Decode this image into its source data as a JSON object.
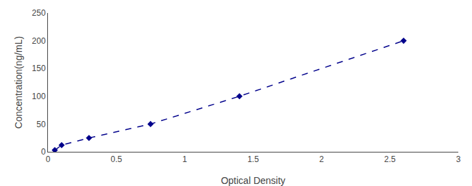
{
  "chart_data": {
    "type": "line",
    "xlabel": "Optical Density",
    "ylabel": "Concentration(ng/mL)",
    "x": [
      0.05,
      0.1,
      0.3,
      0.75,
      1.4,
      2.6
    ],
    "values": [
      3,
      12,
      25,
      50,
      100,
      200
    ],
    "color": "#00008B",
    "marker": "diamond",
    "line_style": "dashed",
    "xlim": [
      0,
      3
    ],
    "ylim": [
      0,
      250
    ],
    "xticks": [
      0,
      0.5,
      1,
      1.5,
      2,
      2.5,
      3
    ],
    "yticks": [
      0,
      50,
      100,
      150,
      200,
      250
    ],
    "grid": false
  }
}
